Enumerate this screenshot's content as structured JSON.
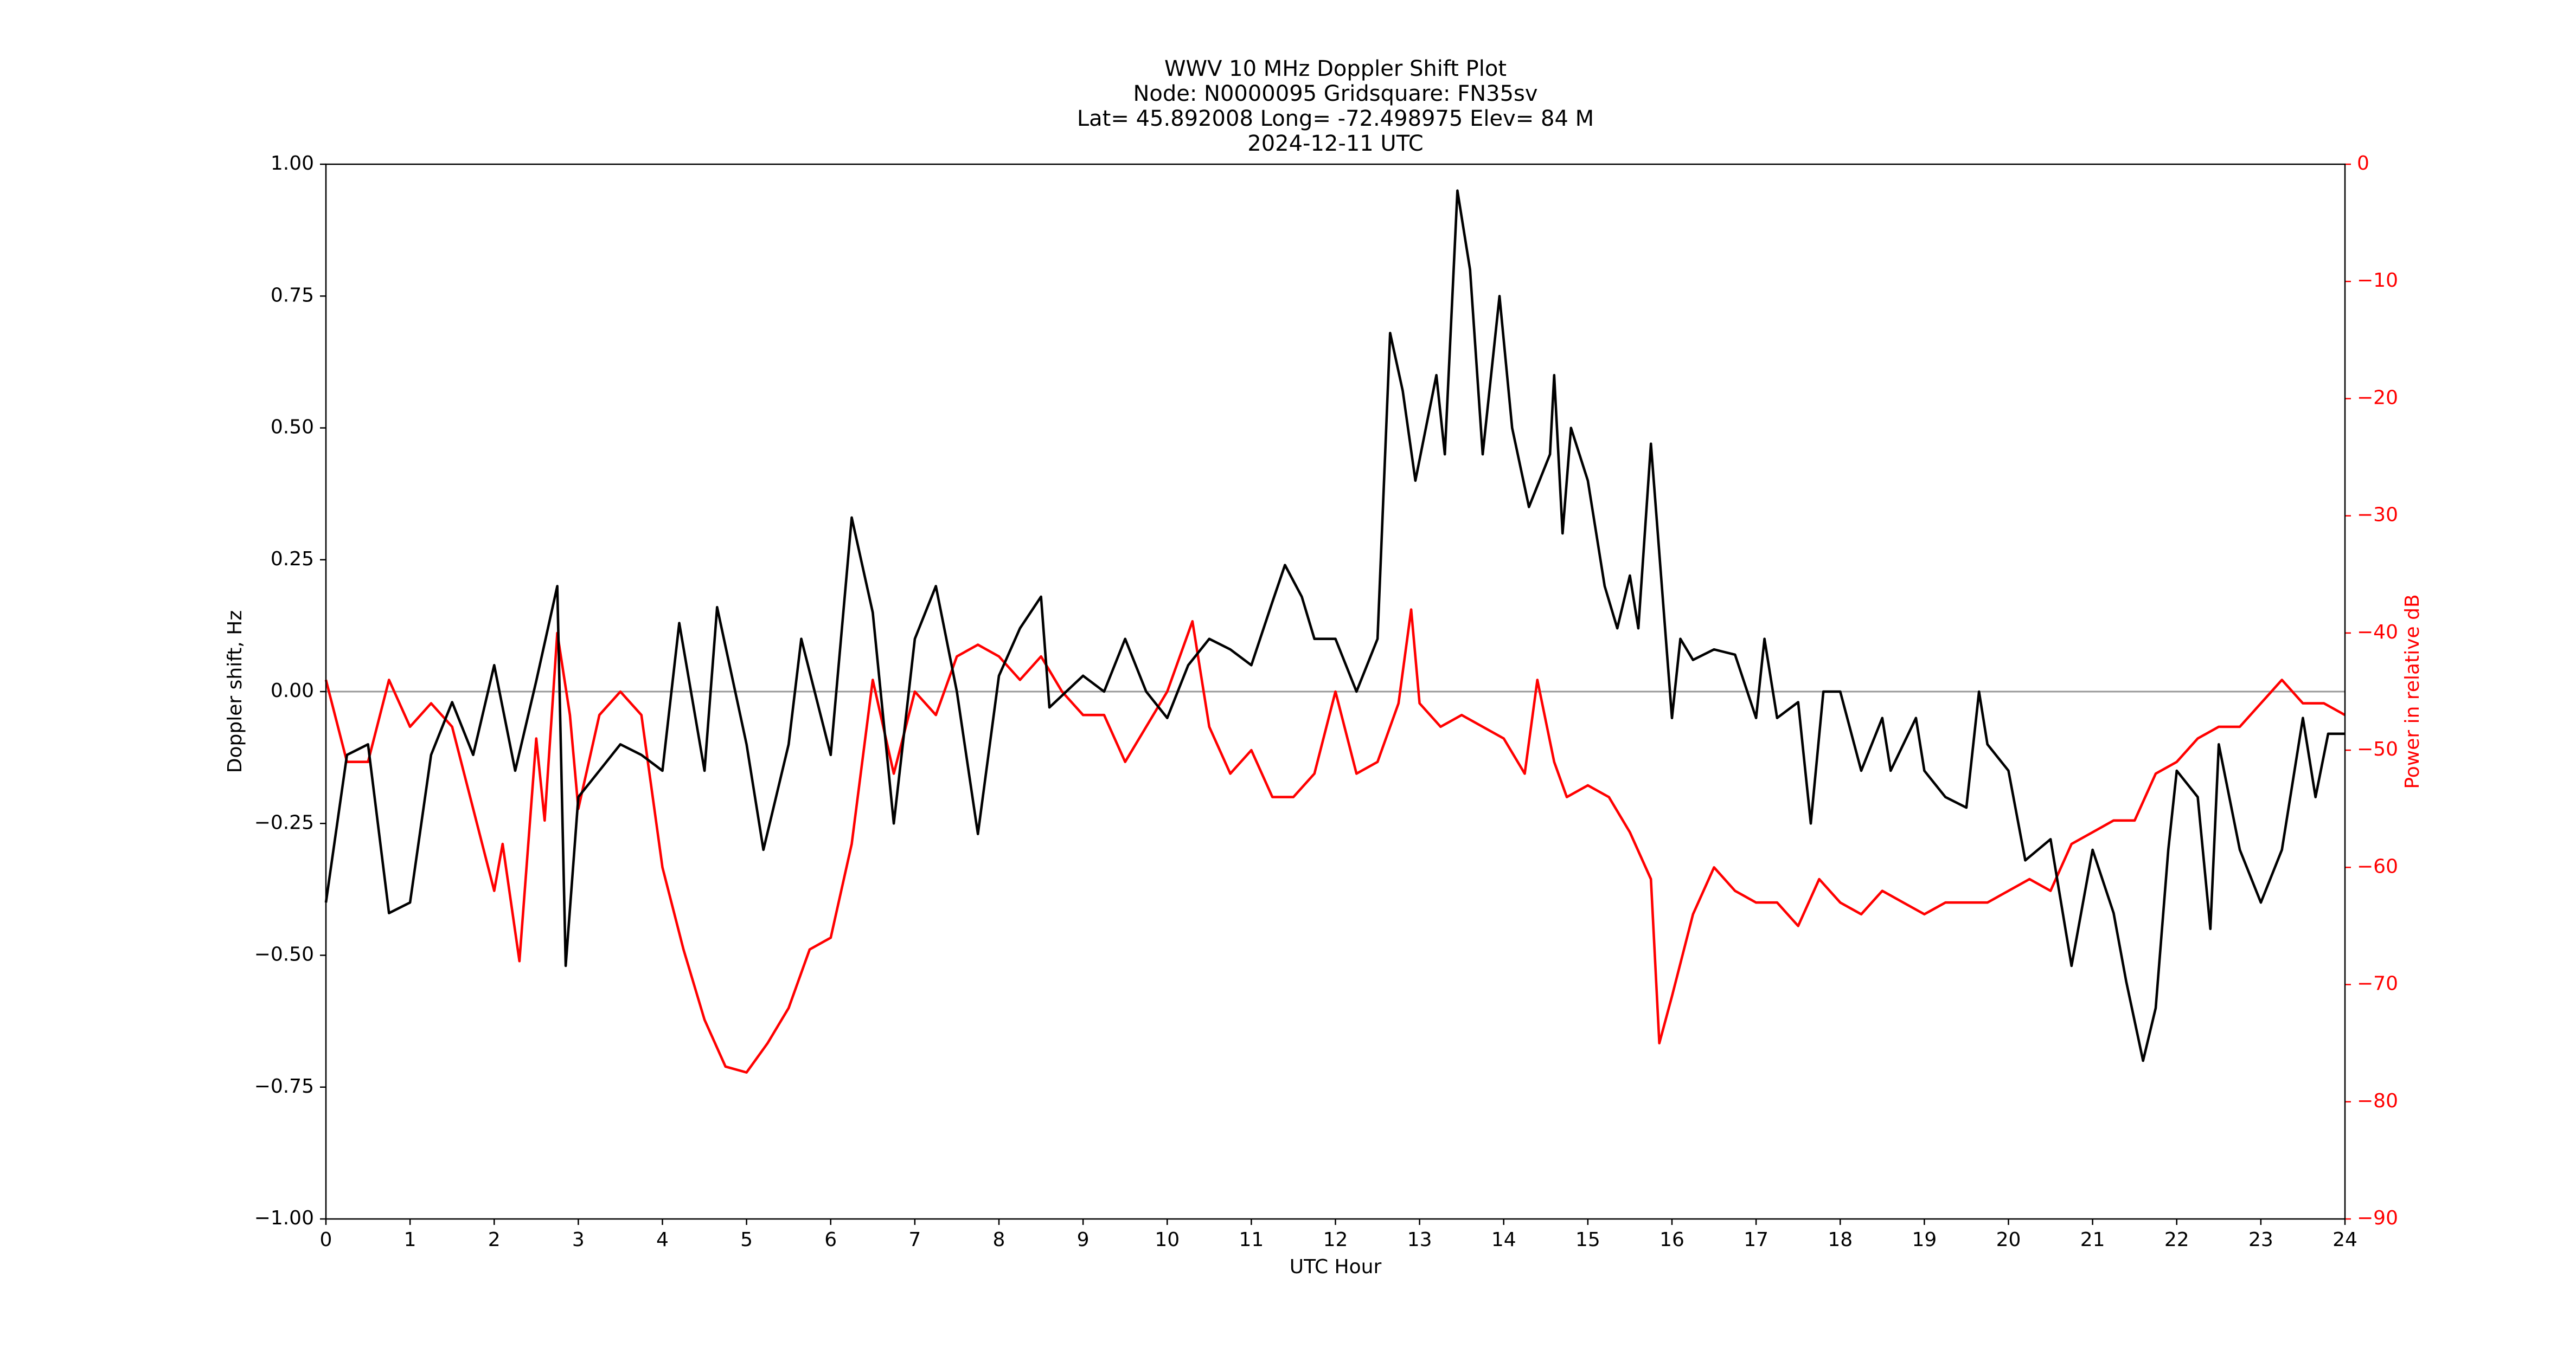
{
  "chart_data": {
    "type": "line",
    "title": [
      "WWV 10 MHz Doppler Shift Plot",
      "Node:  N0000095     Gridsquare:  FN35sv",
      "Lat= 45.892008    Long= -72.498975    Elev= 84 M",
      "2024-12-11  UTC"
    ],
    "xlabel": "UTC Hour",
    "ylabel": "Doppler shift, Hz",
    "y2label": "Power in relative dB",
    "xlim": [
      0,
      24
    ],
    "xticks": [
      0,
      1,
      2,
      3,
      4,
      5,
      6,
      7,
      8,
      9,
      10,
      11,
      12,
      13,
      14,
      15,
      16,
      17,
      18,
      19,
      20,
      21,
      22,
      23,
      24
    ],
    "ylim": [
      -1,
      1
    ],
    "yticks": [
      {
        "value": -1,
        "label": "−1.00"
      },
      {
        "value": -0.75,
        "label": "−0.75"
      },
      {
        "value": -0.5,
        "label": "−0.50"
      },
      {
        "value": -0.25,
        "label": "−0.25"
      },
      {
        "value": 0,
        "label": "0.00"
      },
      {
        "value": 0.25,
        "label": "0.25"
      },
      {
        "value": 0.5,
        "label": "0.50"
      },
      {
        "value": 0.75,
        "label": "0.75"
      },
      {
        "value": 1,
        "label": "1.00"
      }
    ],
    "y2lim": [
      -90,
      0
    ],
    "y2ticks": [
      {
        "value": -90,
        "label": "−90"
      },
      {
        "value": -80,
        "label": "−80"
      },
      {
        "value": -70,
        "label": "−70"
      },
      {
        "value": -60,
        "label": "−60"
      },
      {
        "value": -50,
        "label": "−50"
      },
      {
        "value": -40,
        "label": "−40"
      },
      {
        "value": -30,
        "label": "−30"
      },
      {
        "value": -20,
        "label": "−20"
      },
      {
        "value": -10,
        "label": "−10"
      },
      0
    ],
    "hlines": [
      0
    ],
    "hline_color": "#999999",
    "series": [
      {
        "name": "Doppler shift",
        "color": "#000000",
        "axis": "y",
        "x": [
          0,
          0.25,
          0.5,
          0.75,
          1.0,
          1.25,
          1.5,
          1.75,
          2.0,
          2.25,
          2.5,
          2.75,
          2.85,
          3.0,
          3.25,
          3.5,
          3.75,
          4.0,
          4.2,
          4.5,
          4.65,
          5.0,
          5.2,
          5.5,
          5.65,
          6.0,
          6.25,
          6.5,
          6.75,
          7.0,
          7.25,
          7.5,
          7.75,
          8.0,
          8.25,
          8.5,
          8.6,
          9.0,
          9.25,
          9.5,
          9.75,
          10.0,
          10.25,
          10.5,
          10.75,
          11.0,
          11.25,
          11.4,
          11.6,
          11.75,
          12.0,
          12.25,
          12.5,
          12.65,
          12.8,
          12.95,
          13.2,
          13.3,
          13.45,
          13.6,
          13.75,
          13.95,
          14.1,
          14.3,
          14.55,
          14.6,
          14.7,
          14.8,
          15.0,
          15.2,
          15.35,
          15.5,
          15.6,
          15.75,
          16.0,
          16.1,
          16.25,
          16.5,
          16.75,
          17.0,
          17.1,
          17.25,
          17.5,
          17.65,
          17.8,
          18.0,
          18.25,
          18.5,
          18.6,
          18.9,
          19.0,
          19.25,
          19.5,
          19.65,
          19.75,
          20.0,
          20.2,
          20.5,
          20.75,
          21.0,
          21.25,
          21.4,
          21.6,
          21.75,
          21.9,
          22.0,
          22.25,
          22.4,
          22.5,
          22.75,
          23.0,
          23.25,
          23.5,
          23.65,
          23.8,
          24.0
        ],
        "values": [
          -0.4,
          -0.12,
          -0.1,
          -0.42,
          -0.4,
          -0.12,
          -0.02,
          -0.12,
          0.05,
          -0.15,
          0.02,
          0.2,
          -0.52,
          -0.2,
          -0.15,
          -0.1,
          -0.12,
          -0.15,
          0.13,
          -0.15,
          0.16,
          -0.1,
          -0.3,
          -0.1,
          0.1,
          -0.12,
          0.33,
          0.15,
          -0.25,
          0.1,
          0.2,
          0.0,
          -0.27,
          0.03,
          0.12,
          0.18,
          -0.03,
          0.03,
          0.0,
          0.1,
          0.0,
          -0.05,
          0.05,
          0.1,
          0.08,
          0.05,
          0.17,
          0.24,
          0.18,
          0.1,
          0.1,
          0.0,
          0.1,
          0.68,
          0.57,
          0.4,
          0.6,
          0.45,
          0.95,
          0.8,
          0.45,
          0.75,
          0.5,
          0.35,
          0.45,
          0.6,
          0.3,
          0.5,
          0.4,
          0.2,
          0.12,
          0.22,
          0.12,
          0.47,
          -0.05,
          0.1,
          0.06,
          0.08,
          0.07,
          -0.05,
          0.1,
          -0.05,
          -0.02,
          -0.25,
          0.0,
          0.0,
          -0.15,
          -0.05,
          -0.15,
          -0.05,
          -0.15,
          -0.2,
          -0.22,
          0.0,
          -0.1,
          -0.15,
          -0.32,
          -0.28,
          -0.52,
          -0.3,
          -0.42,
          -0.55,
          -0.7,
          -0.6,
          -0.3,
          -0.15,
          -0.2,
          -0.45,
          -0.1,
          -0.3,
          -0.4,
          -0.3,
          -0.05,
          -0.2,
          -0.08,
          -0.08
        ]
      },
      {
        "name": "Power",
        "color": "#ff0000",
        "axis": "y2",
        "x": [
          0,
          0.25,
          0.5,
          0.75,
          1.0,
          1.25,
          1.5,
          1.75,
          2.0,
          2.1,
          2.3,
          2.5,
          2.6,
          2.75,
          2.9,
          3.0,
          3.25,
          3.5,
          3.75,
          4.0,
          4.25,
          4.5,
          4.75,
          5.0,
          5.25,
          5.5,
          5.75,
          6.0,
          6.25,
          6.5,
          6.75,
          7.0,
          7.25,
          7.5,
          7.75,
          8.0,
          8.25,
          8.5,
          8.75,
          9.0,
          9.25,
          9.5,
          9.75,
          10.0,
          10.3,
          10.5,
          10.75,
          11.0,
          11.25,
          11.5,
          11.75,
          12.0,
          12.25,
          12.5,
          12.75,
          12.9,
          13.0,
          13.25,
          13.5,
          13.75,
          14.0,
          14.25,
          14.4,
          14.6,
          14.75,
          15.0,
          15.25,
          15.5,
          15.75,
          15.85,
          16.0,
          16.25,
          16.5,
          16.75,
          17.0,
          17.25,
          17.5,
          17.75,
          18.0,
          18.25,
          18.5,
          18.75,
          19.0,
          19.25,
          19.5,
          19.75,
          20.0,
          20.25,
          20.5,
          20.75,
          21.0,
          21.25,
          21.5,
          21.75,
          22.0,
          22.25,
          22.5,
          22.75,
          23.0,
          23.25,
          23.5,
          23.75,
          24.0
        ],
        "values": [
          -44,
          -51,
          -51,
          -44,
          -48,
          -46,
          -48,
          -55,
          -62,
          -58,
          -68,
          -49,
          -56,
          -40,
          -47,
          -55,
          -47,
          -45,
          -47,
          -60,
          -67,
          -73,
          -77,
          -77.5,
          -75,
          -72,
          -67,
          -66,
          -58,
          -44,
          -52,
          -45,
          -47,
          -42,
          -41,
          -42,
          -44,
          -42,
          -45,
          -47,
          -47,
          -51,
          -48,
          -45,
          -39,
          -48,
          -52,
          -50,
          -54,
          -54,
          -52,
          -45,
          -52,
          -51,
          -46,
          -38,
          -46,
          -48,
          -47,
          -48,
          -49,
          -52,
          -44,
          -51,
          -54,
          -53,
          -54,
          -57,
          -61,
          -75,
          -71,
          -64,
          -60,
          -62,
          -63,
          -63,
          -65,
          -61,
          -63,
          -64,
          -62,
          -63,
          -64,
          -63,
          -63,
          -63,
          -62,
          -61,
          -62,
          -58,
          -57,
          -56,
          -56,
          -52,
          -51,
          -49,
          -48,
          -48,
          -46,
          -44,
          -46,
          -46,
          -47
        ]
      }
    ]
  }
}
